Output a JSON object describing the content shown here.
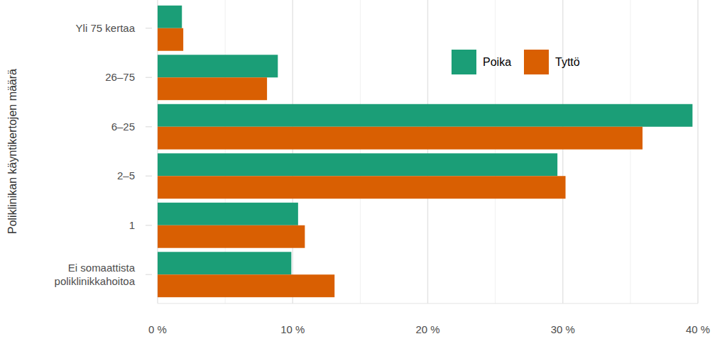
{
  "chart_data": {
    "type": "bar",
    "orientation": "horizontal",
    "y_label": "Poliklinikan käyntikertojen määrä",
    "categories": [
      "Yli 75 kertaa",
      "26–75",
      "6–25",
      "2–5",
      "1",
      "Ei somaattista\npoliklinikkahoitoa"
    ],
    "series": [
      {
        "name": "Poika",
        "color": "#1b9e77",
        "values": [
          1.8,
          8.9,
          39.6,
          29.6,
          10.4,
          9.9
        ]
      },
      {
        "name": "Tyttö",
        "color": "#d95f02",
        "values": [
          1.9,
          8.1,
          35.9,
          30.2,
          10.9,
          13.1
        ]
      }
    ],
    "xlim": [
      0,
      40
    ],
    "xticks": [
      {
        "value": 0,
        "label": "0 %"
      },
      {
        "value": 10,
        "label": "10 %"
      },
      {
        "value": 20,
        "label": "20 %"
      },
      {
        "value": 30,
        "label": "30 %"
      },
      {
        "value": 40,
        "label": "40 %"
      }
    ],
    "grid": true,
    "legend": "top-right"
  }
}
